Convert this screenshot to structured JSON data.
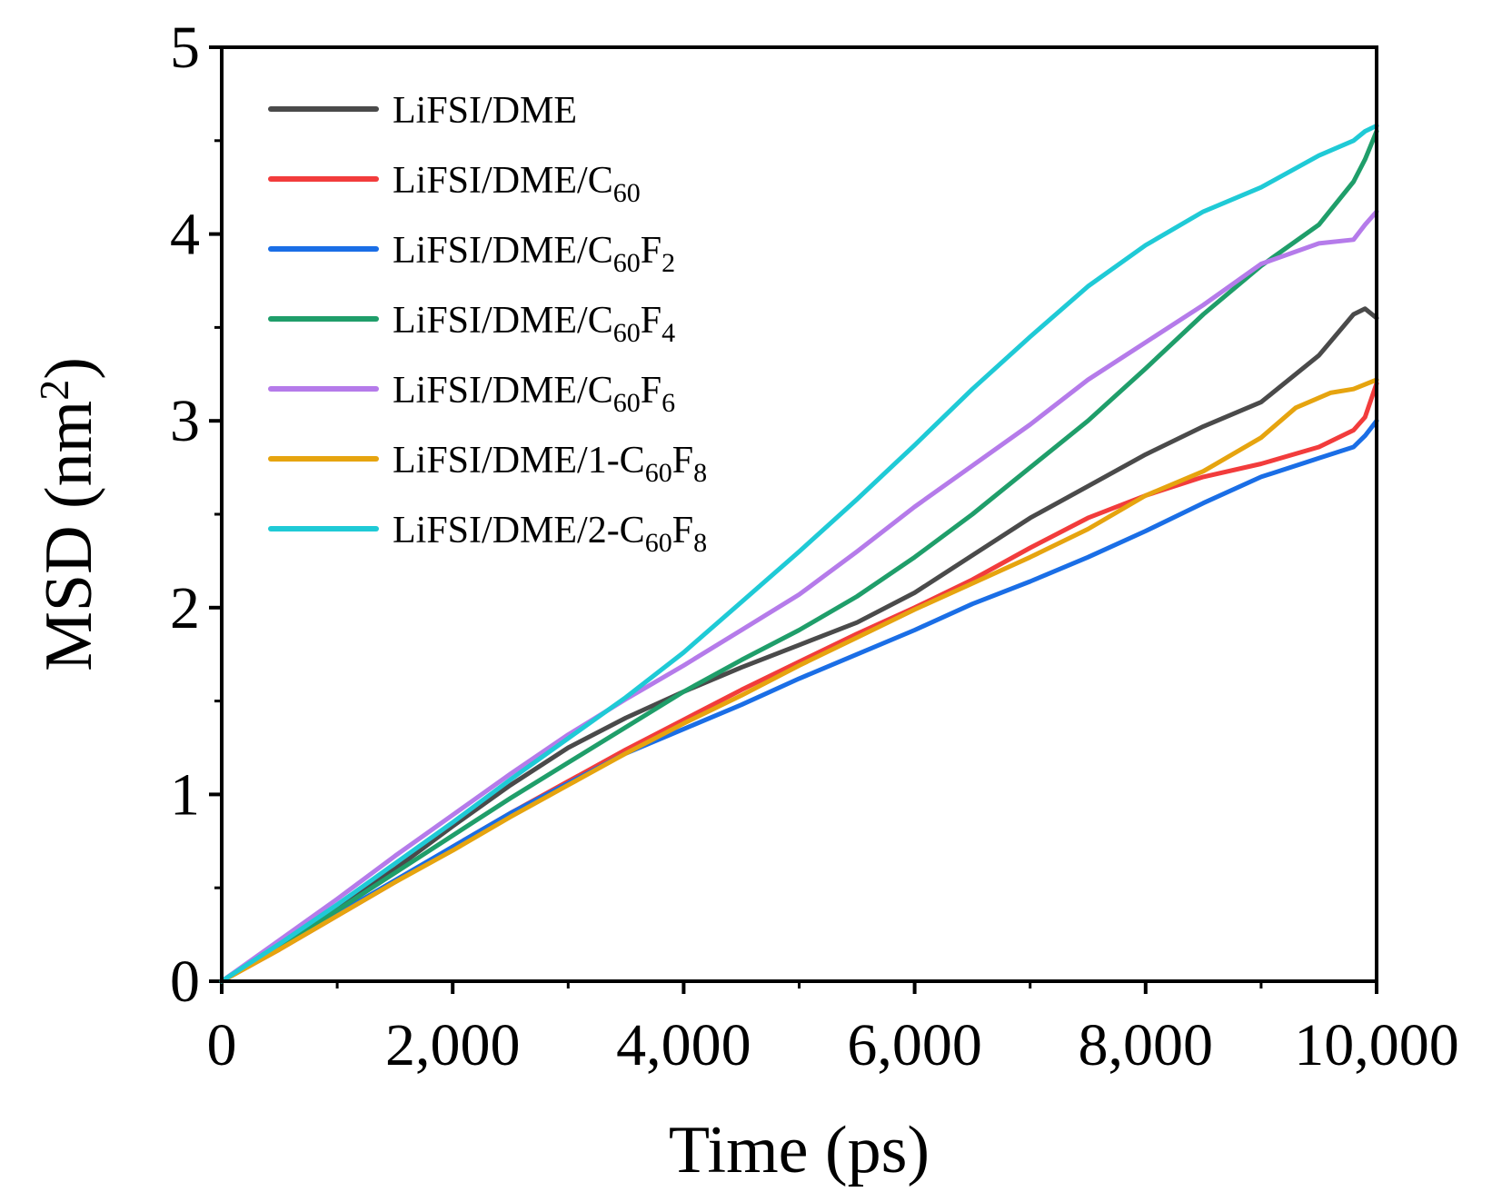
{
  "chart_data": {
    "type": "line",
    "title": "",
    "xlabel": "Time (ps)",
    "ylabel": {
      "main": "MSD (nm",
      "sup": "2",
      "close": ")"
    },
    "xlim": [
      0,
      10000
    ],
    "ylim": [
      0,
      5
    ],
    "xticks": [
      0,
      2000,
      4000,
      6000,
      8000,
      10000
    ],
    "xtick_labels": [
      "0",
      "2,000",
      "4,000",
      "6,000",
      "8,000",
      "10,000"
    ],
    "yticks": [
      0,
      1,
      2,
      3,
      4,
      5
    ],
    "ytick_labels": [
      "0",
      "1",
      "2",
      "3",
      "4",
      "5"
    ],
    "grid": false,
    "legend_position": "top-left",
    "series": [
      {
        "name": "LiFSI/DME",
        "label_parts": [
          [
            "LiFSI/DME",
            ""
          ]
        ],
        "color": "#4a4a4a",
        "x": [
          0,
          500,
          1000,
          1500,
          2000,
          2500,
          3000,
          3500,
          4000,
          4500,
          5000,
          5500,
          6000,
          6500,
          7000,
          7500,
          8000,
          8500,
          9000,
          9500,
          9800,
          9900,
          10000
        ],
        "y": [
          0,
          0.2,
          0.4,
          0.6,
          0.83,
          1.05,
          1.25,
          1.41,
          1.55,
          1.68,
          1.8,
          1.92,
          2.08,
          2.28,
          2.48,
          2.65,
          2.82,
          2.97,
          3.1,
          3.35,
          3.57,
          3.6,
          3.55
        ]
      },
      {
        "name": "LiFSI/DME/C60",
        "label_parts": [
          [
            "LiFSI/DME/C",
            ""
          ],
          [
            "60",
            "sub"
          ]
        ],
        "color": "#f23c3c",
        "x": [
          0,
          500,
          1000,
          1500,
          2000,
          2500,
          3000,
          3500,
          4000,
          4500,
          5000,
          5500,
          6000,
          6500,
          7000,
          7500,
          8000,
          8500,
          9000,
          9500,
          9800,
          9900,
          10000
        ],
        "y": [
          0,
          0.17,
          0.35,
          0.53,
          0.72,
          0.9,
          1.07,
          1.24,
          1.4,
          1.56,
          1.71,
          1.86,
          2.0,
          2.15,
          2.32,
          2.48,
          2.6,
          2.7,
          2.77,
          2.86,
          2.95,
          3.02,
          3.2
        ]
      },
      {
        "name": "LiFSI/DME/C60F2",
        "label_parts": [
          [
            "LiFSI/DME/C",
            ""
          ],
          [
            "60",
            "sub"
          ],
          [
            "F",
            ""
          ],
          [
            "2",
            "sub"
          ]
        ],
        "color": "#1a6ee6",
        "x": [
          0,
          500,
          1000,
          1500,
          2000,
          2500,
          3000,
          3500,
          4000,
          4500,
          5000,
          5500,
          6000,
          6500,
          7000,
          7500,
          8000,
          8500,
          9000,
          9500,
          9800,
          9900,
          10000
        ],
        "y": [
          0,
          0.18,
          0.36,
          0.54,
          0.72,
          0.9,
          1.06,
          1.22,
          1.35,
          1.48,
          1.62,
          1.75,
          1.88,
          2.02,
          2.14,
          2.27,
          2.41,
          2.56,
          2.7,
          2.8,
          2.86,
          2.92,
          3.0
        ]
      },
      {
        "name": "LiFSI/DME/C60F4",
        "label_parts": [
          [
            "LiFSI/DME/C",
            ""
          ],
          [
            "60",
            "sub"
          ],
          [
            "F",
            ""
          ],
          [
            "4",
            "sub"
          ]
        ],
        "color": "#1f9e6a",
        "x": [
          0,
          500,
          1000,
          1500,
          2000,
          2500,
          3000,
          3500,
          4000,
          4500,
          5000,
          5500,
          6000,
          6500,
          7000,
          7500,
          8000,
          8500,
          9000,
          9500,
          9800,
          9900,
          10000
        ],
        "y": [
          0,
          0.19,
          0.38,
          0.58,
          0.78,
          0.98,
          1.17,
          1.36,
          1.55,
          1.72,
          1.88,
          2.06,
          2.27,
          2.5,
          2.75,
          3.0,
          3.28,
          3.57,
          3.83,
          4.05,
          4.28,
          4.4,
          4.55
        ]
      },
      {
        "name": "LiFSI/DME/C60F6",
        "label_parts": [
          [
            "LiFSI/DME/C",
            ""
          ],
          [
            "60",
            "sub"
          ],
          [
            "F",
            ""
          ],
          [
            "6",
            "sub"
          ]
        ],
        "color": "#b57bea",
        "x": [
          0,
          500,
          1000,
          1500,
          2000,
          2500,
          3000,
          3500,
          4000,
          4500,
          5000,
          5500,
          6000,
          6500,
          7000,
          7500,
          8000,
          8500,
          9000,
          9500,
          9800,
          9900,
          10000
        ],
        "y": [
          0,
          0.22,
          0.44,
          0.67,
          0.89,
          1.11,
          1.32,
          1.51,
          1.69,
          1.88,
          2.07,
          2.3,
          2.54,
          2.76,
          2.98,
          3.22,
          3.42,
          3.62,
          3.84,
          3.95,
          3.97,
          4.05,
          4.12
        ]
      },
      {
        "name": "LiFSI/DME/1-C60F8",
        "label_parts": [
          [
            "LiFSI/DME/1-C",
            ""
          ],
          [
            "60",
            "sub"
          ],
          [
            "F",
            ""
          ],
          [
            "8",
            "sub"
          ]
        ],
        "color": "#e6a40f",
        "x": [
          0,
          500,
          1000,
          1500,
          2000,
          2500,
          3000,
          3500,
          4000,
          4500,
          5000,
          5500,
          6000,
          6500,
          7000,
          7500,
          8000,
          8500,
          9000,
          9300,
          9600,
          9800,
          10000
        ],
        "y": [
          0,
          0.17,
          0.35,
          0.53,
          0.7,
          0.88,
          1.05,
          1.22,
          1.38,
          1.53,
          1.69,
          1.84,
          1.99,
          2.13,
          2.27,
          2.42,
          2.6,
          2.73,
          2.91,
          3.07,
          3.15,
          3.17,
          3.22
        ]
      },
      {
        "name": "LiFSI/DME/2-C60F8",
        "label_parts": [
          [
            "LiFSI/DME/2-C",
            ""
          ],
          [
            "60",
            "sub"
          ],
          [
            "F",
            ""
          ],
          [
            "8",
            "sub"
          ]
        ],
        "color": "#1fcad6",
        "x": [
          0,
          500,
          1000,
          1500,
          2000,
          2500,
          3000,
          3500,
          4000,
          4500,
          5000,
          5500,
          6000,
          6500,
          7000,
          7500,
          8000,
          8500,
          9000,
          9500,
          9800,
          9900,
          10000
        ],
        "y": [
          0,
          0.2,
          0.41,
          0.63,
          0.85,
          1.08,
          1.3,
          1.52,
          1.76,
          2.03,
          2.3,
          2.58,
          2.87,
          3.17,
          3.45,
          3.72,
          3.94,
          4.12,
          4.25,
          4.42,
          4.5,
          4.55,
          4.58
        ]
      }
    ]
  }
}
